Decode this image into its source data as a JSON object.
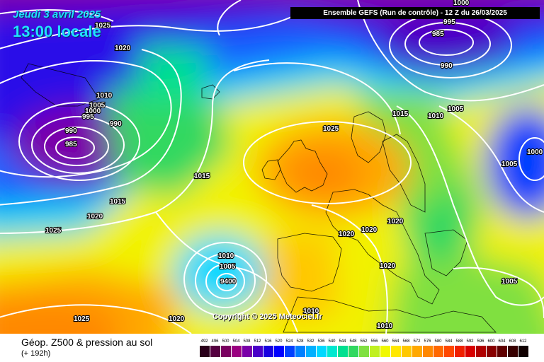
{
  "header": {
    "date": "Jeudi 3 avril 2025",
    "time": "13:00 locale",
    "run": "Ensemble GEFS  (Run de contrôle)  -  12 Z du 26/03/2025"
  },
  "copyright": "Copyright © 2025 Meteociel.fr",
  "legend": {
    "title": "Géop. Z500 & pression au sol",
    "subtitle": "(+ 192h)",
    "ticks": [
      "492",
      "496",
      "500",
      "504",
      "508",
      "512",
      "516",
      "520",
      "524",
      "528",
      "532",
      "536",
      "540",
      "544",
      "548",
      "552",
      "556",
      "560",
      "564",
      "568",
      "572",
      "576",
      "580",
      "584",
      "588",
      "592",
      "596",
      "600",
      "604",
      "608",
      "612"
    ],
    "colors": [
      "#2a001a",
      "#550040",
      "#7a0060",
      "#9a0080",
      "#7a00a8",
      "#4a00c8",
      "#1800e0",
      "#0000ff",
      "#0040ff",
      "#0080ff",
      "#00b0ff",
      "#00d8ff",
      "#00e8d0",
      "#00e090",
      "#30d860",
      "#80e040",
      "#c0f020",
      "#f0f800",
      "#ffe800",
      "#ffc800",
      "#ffa800",
      "#ff8800",
      "#ff6800",
      "#ff4800",
      "#f02000",
      "#d80000",
      "#b00000",
      "#880000",
      "#600000",
      "#380000",
      "#100000"
    ]
  },
  "isobar_labels": [
    {
      "text": "1025"
    },
    {
      "text": "1020"
    },
    {
      "text": "1010"
    },
    {
      "text": "1005"
    },
    {
      "text": "1000"
    },
    {
      "text": "995"
    },
    {
      "text": "990"
    },
    {
      "text": "990"
    },
    {
      "text": "985"
    },
    {
      "text": "1015"
    },
    {
      "text": "1020"
    },
    {
      "text": "1025"
    },
    {
      "text": "1015"
    },
    {
      "text": "1025"
    },
    {
      "text": "1010"
    },
    {
      "text": "1005"
    },
    {
      "text": "9400"
    },
    {
      "text": "1020"
    },
    {
      "text": "1025"
    },
    {
      "text": "1020"
    },
    {
      "text": "1020"
    },
    {
      "text": "1020"
    },
    {
      "text": "1020"
    },
    {
      "text": "1010"
    },
    {
      "text": "1010"
    },
    {
      "text": "1015"
    },
    {
      "text": "1010"
    },
    {
      "text": "1005"
    },
    {
      "text": "1000"
    },
    {
      "text": "1005"
    },
    {
      "text": "1005"
    },
    {
      "text": "995"
    },
    {
      "text": "985"
    },
    {
      "text": "990"
    },
    {
      "text": "1000"
    }
  ]
}
